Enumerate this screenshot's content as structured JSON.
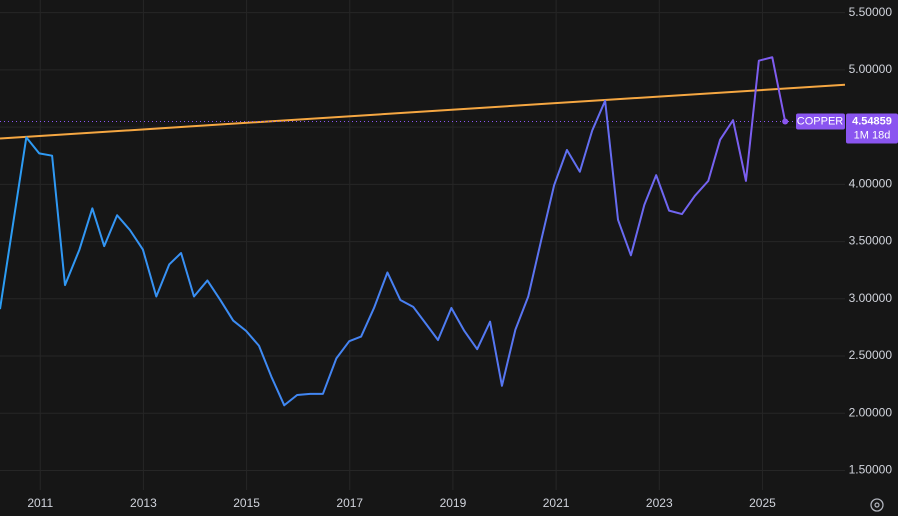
{
  "chart_data": {
    "type": "line",
    "x": [
      2010.22,
      2010.73,
      2010.98,
      2011.23,
      2011.48,
      2011.76,
      2012.01,
      2012.24,
      2012.49,
      2012.74,
      2012.99,
      2013.25,
      2013.5,
      2013.73,
      2013.98,
      2014.24,
      2014.49,
      2014.74,
      2014.99,
      2015.24,
      2015.48,
      2015.73,
      2015.98,
      2016.23,
      2016.48,
      2016.74,
      2016.99,
      2017.22,
      2017.47,
      2017.73,
      2017.98,
      2018.23,
      2018.48,
      2018.71,
      2018.97,
      2019.22,
      2019.47,
      2019.72,
      2019.95,
      2020.21,
      2020.46,
      2020.71,
      2020.96,
      2021.21,
      2021.46,
      2021.7,
      2021.95,
      2022.2,
      2022.45,
      2022.71,
      2022.94,
      2023.19,
      2023.44,
      2023.69,
      2023.95,
      2024.18,
      2024.43,
      2024.68,
      2024.93,
      2025.19,
      2025.44
    ],
    "series": [
      {
        "name": "COPPER",
        "colors": [
          "#2b9df4",
          "#4a7ef2",
          "#8a55f0"
        ],
        "values": [
          2.91,
          4.41,
          4.27,
          4.25,
          3.12,
          3.43,
          3.79,
          3.46,
          3.73,
          3.6,
          3.43,
          3.02,
          3.3,
          3.4,
          3.02,
          3.16,
          2.99,
          2.81,
          2.72,
          2.59,
          2.32,
          2.07,
          2.16,
          2.17,
          2.17,
          2.48,
          2.63,
          2.67,
          2.92,
          3.23,
          2.99,
          2.93,
          2.78,
          2.64,
          2.92,
          2.72,
          2.56,
          2.8,
          2.24,
          2.73,
          3.02,
          3.51,
          3.99,
          4.3,
          4.11,
          4.47,
          4.73,
          3.69,
          3.38,
          3.82,
          4.08,
          3.77,
          3.74,
          3.9,
          4.03,
          4.39,
          4.56,
          4.03,
          5.08,
          5.11,
          4.54859
        ]
      }
    ],
    "last_price": {
      "value": 4.54859,
      "label": "4.54859"
    },
    "countdown": "1M 18d",
    "trendline": {
      "x": [
        2010.22,
        2026.6
      ],
      "values": [
        4.4,
        4.87
      ],
      "color": "#f5a742"
    },
    "xlim": [
      2010.22,
      2026.6
    ],
    "ylim": [
      1.33,
      5.61
    ],
    "xticks": [
      2011,
      2013,
      2015,
      2017,
      2019,
      2021,
      2023,
      2025
    ],
    "yticks": [
      {
        "value": 1.5,
        "label": "1.50000"
      },
      {
        "value": 2.0,
        "label": "2.00000"
      },
      {
        "value": 2.5,
        "label": "2.50000"
      },
      {
        "value": 3.0,
        "label": "3.00000"
      },
      {
        "value": 3.5,
        "label": "3.50000"
      },
      {
        "value": 4.0,
        "label": "4.00000"
      },
      {
        "value": 4.5,
        "label": "4.50000"
      },
      {
        "value": 5.0,
        "label": "5.00000"
      },
      {
        "value": 5.5,
        "label": "5.50000"
      }
    ],
    "grid": true
  }
}
